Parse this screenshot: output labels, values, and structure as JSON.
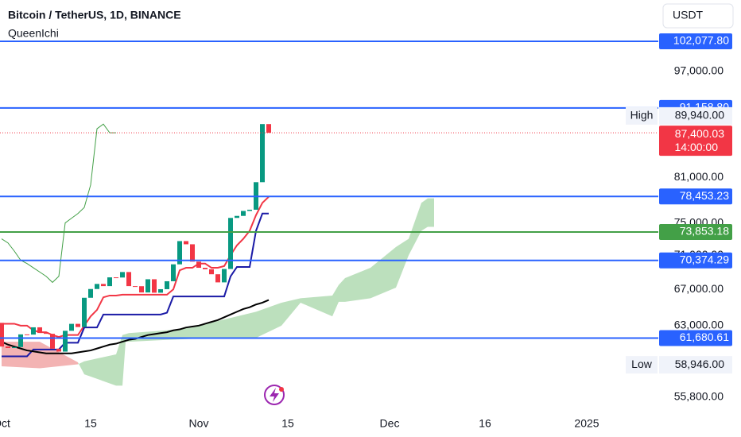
{
  "header": {
    "title": "Bitcoin / TetherUS, 1D, BINANCE",
    "indicator": "QueenIchi",
    "currency": "USDT"
  },
  "chart_data": {
    "type": "candlestick",
    "log_scale": true,
    "x": [
      0,
      1,
      2,
      3,
      4,
      5,
      6,
      7,
      8,
      9,
      10,
      11,
      12,
      13,
      14,
      15,
      16,
      17,
      18,
      19,
      20,
      21,
      22,
      23,
      24,
      25,
      26,
      27,
      28,
      29,
      30,
      31,
      32,
      33,
      34,
      35,
      36,
      37,
      38,
      39,
      40,
      41,
      42
    ],
    "open": [
      63300,
      60800,
      60650,
      60750,
      62070,
      62050,
      62820,
      62220,
      62130,
      60580,
      60280,
      62450,
      63190,
      62850,
      66050,
      67040,
      67620,
      67370,
      68380,
      68360,
      69000,
      67370,
      67360,
      66650,
      68160,
      66620,
      67020,
      67930,
      69910,
      72720,
      72330,
      70230,
      69500,
      69330,
      68740,
      67800,
      69360,
      75640,
      75900,
      76540,
      76700,
      80370,
      88700
    ],
    "high": {
      "text": "High",
      "value": 89940,
      "label": "89,940.00"
    },
    "low": {
      "text": "Low",
      "value": 58946,
      "label": "58,946.00"
    },
    "close": [
      60800,
      60650,
      60750,
      62070,
      62050,
      62820,
      62220,
      62130,
      60580,
      60280,
      62450,
      63190,
      62850,
      66050,
      67040,
      67620,
      67370,
      68380,
      68360,
      69000,
      67370,
      67360,
      66650,
      68160,
      66620,
      67020,
      67930,
      69910,
      72720,
      72330,
      70230,
      69500,
      69330,
      68740,
      67800,
      69360,
      75640,
      75900,
      76540,
      76700,
      80370,
      88700,
      87400.03
    ],
    "up_color": "#089981",
    "down_color": "#f23645",
    "lines": [
      {
        "color": "#f23645",
        "x": [
          0,
          1,
          2,
          3,
          4,
          5,
          6,
          7,
          8,
          9,
          10,
          11,
          12,
          13,
          14,
          15,
          16,
          17,
          18,
          19,
          20,
          21,
          22,
          23,
          24,
          25,
          26,
          27,
          28,
          29,
          30,
          31,
          32,
          33,
          34,
          35,
          36,
          37,
          38,
          39,
          40,
          41,
          42
        ],
        "values": [
          63200,
          63200,
          63200,
          63000,
          63000,
          62500,
          62300,
          62300,
          62000,
          61800,
          62000,
          62000,
          62000,
          63000,
          64000,
          64700,
          66100,
          66300,
          66300,
          66400,
          66400,
          66400,
          66400,
          66400,
          66400,
          66400,
          66400,
          67000,
          69200,
          69500,
          69500,
          70000,
          70000,
          69500,
          69500,
          69700,
          71000,
          72200,
          73000,
          74000,
          76000,
          77600,
          78400
        ]
      },
      {
        "color": "#1a1aa6",
        "x": [
          0,
          1,
          2,
          3,
          4,
          5,
          6,
          7,
          8,
          9,
          10,
          11,
          12,
          13,
          14,
          15,
          16,
          17,
          18,
          19,
          20,
          21,
          22,
          23,
          24,
          25,
          26,
          27,
          28,
          29,
          30,
          31,
          32,
          33,
          34,
          35,
          36,
          37,
          38,
          39,
          40,
          41,
          42
        ],
        "values": [
          59800,
          59800,
          59800,
          59800,
          59800,
          60500,
          60500,
          60500,
          60500,
          60500,
          61200,
          61200,
          61200,
          62800,
          62800,
          62800,
          64200,
          64200,
          64200,
          64200,
          64200,
          64200,
          64200,
          64200,
          64200,
          64200,
          64400,
          66200,
          66200,
          66200,
          66200,
          66200,
          66200,
          66200,
          66200,
          66200,
          68500,
          69600,
          69600,
          69600,
          74000,
          76200,
          76200
        ]
      },
      {
        "color": "#000000",
        "x": [
          0,
          1,
          2,
          3,
          4,
          5,
          6,
          7,
          8,
          9,
          10,
          11,
          12,
          13,
          14,
          15,
          16,
          17,
          18,
          19,
          20,
          21,
          22,
          23,
          24,
          25,
          26,
          27,
          28,
          29,
          30,
          31,
          32,
          33,
          34,
          35,
          36,
          37,
          38,
          39,
          40,
          41,
          42
        ],
        "values": [
          61300,
          61000,
          60800,
          60600,
          60400,
          60300,
          60200,
          60100,
          60100,
          60100,
          60100,
          60100,
          60200,
          60300,
          60400,
          60600,
          60800,
          61000,
          61100,
          61300,
          61500,
          61600,
          61800,
          62000,
          62100,
          62200,
          62300,
          62500,
          62600,
          62800,
          62900,
          63000,
          63200,
          63400,
          63600,
          63900,
          64200,
          64500,
          64800,
          65000,
          65300,
          65500,
          65800
        ]
      },
      {
        "color": "#43a047",
        "x": [
          0,
          1,
          2,
          3,
          4,
          5,
          6,
          7,
          8,
          9,
          10,
          11,
          12,
          13,
          14,
          15,
          16,
          17,
          18
        ],
        "values": [
          73000,
          72500,
          71500,
          70400,
          70000,
          69500,
          69000,
          68500,
          67800,
          68500,
          75000,
          75600,
          76200,
          77000,
          80000,
          88000,
          88700,
          87400,
          87400
        ]
      }
    ],
    "cloud": {
      "x": [
        0,
        6,
        12,
        13,
        18,
        19,
        19.5,
        20,
        26,
        30,
        34,
        40,
        44,
        47,
        52,
        53,
        54,
        58,
        62,
        64,
        66,
        67,
        68
      ],
      "span_a": [
        58800,
        58600,
        59000,
        59300,
        60000,
        62000,
        62100,
        62200,
        62500,
        62800,
        63500,
        64500,
        65500,
        66000,
        66300,
        67500,
        68300,
        69500,
        72000,
        73000,
        77600,
        78200,
        78200
      ],
      "span_b": [
        61300,
        61300,
        59200,
        58000,
        56900,
        56900,
        61300,
        61300,
        61500,
        61600,
        61700,
        61700,
        63000,
        65500,
        64000,
        65600,
        65600,
        66000,
        67200,
        71000,
        74000,
        74500,
        74500
      ],
      "up_color": "#a5d6a7",
      "down_color": "#ef9a9a"
    },
    "levels": [
      {
        "value": 102077.8,
        "label": "102,077.80",
        "color": "#2962ff"
      },
      {
        "value": 91158.8,
        "label": "91,158.80",
        "color": "#2962ff"
      },
      {
        "value": 78453.23,
        "label": "78,453.23",
        "color": "#2962ff"
      },
      {
        "value": 73853.18,
        "label": "73,853.18",
        "color": "#43a047"
      },
      {
        "value": 70374.29,
        "label": "70,374.29",
        "color": "#2962ff"
      },
      {
        "value": 61680.61,
        "label": "61,680.61",
        "color": "#2962ff"
      }
    ],
    "last_price": {
      "value": 87400.03,
      "label": "87,400.03",
      "countdown": "14:00:00",
      "color": "#f23645"
    },
    "xlim": [
      -0.25,
      103.25
    ],
    "xticks": [
      {
        "value": 0,
        "label": "Oct"
      },
      {
        "value": 14,
        "label": "15"
      },
      {
        "value": 31,
        "label": "Nov"
      },
      {
        "value": 45,
        "label": "15"
      },
      {
        "value": 61,
        "label": "Dec"
      },
      {
        "value": 76,
        "label": "16"
      },
      {
        "value": 92,
        "label": "2025"
      }
    ],
    "ylim": [
      54300,
      109500
    ],
    "yticks": [
      {
        "value": 55800,
        "label": "55,800.00"
      },
      {
        "value": 63000,
        "label": "63,000.00"
      },
      {
        "value": 67000,
        "label": "67,000.00"
      },
      {
        "value": 71000,
        "label": "71,000.00"
      },
      {
        "value": 75000,
        "label": "75,000.00"
      },
      {
        "value": 81000,
        "label": "81,000.00"
      },
      {
        "value": 97000,
        "label": "97,000.00"
      }
    ]
  }
}
